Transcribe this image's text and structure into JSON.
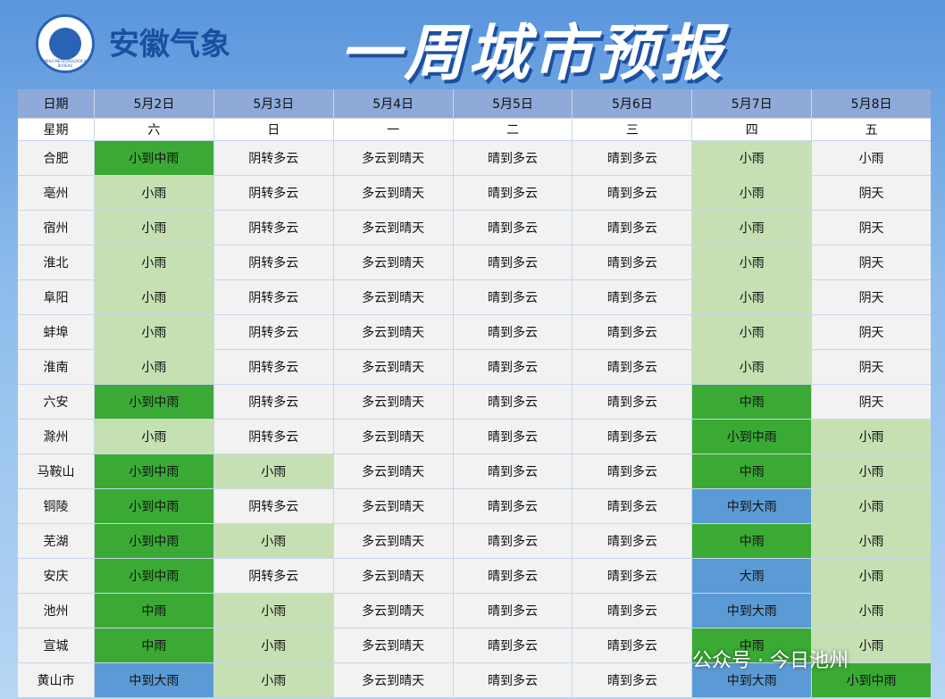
{
  "header": {
    "brand": "安徽气象",
    "title": "一周城市预报",
    "logo_text": "ANHUI METEOROLOGICAL BUREAU"
  },
  "table": {
    "header": [
      "日期",
      "5月2日",
      "5月3日",
      "5月4日",
      "5月5日",
      "5月6日",
      "5月7日",
      "5月8日"
    ],
    "weekdays": [
      "星期",
      "六",
      "日",
      "一",
      "二",
      "三",
      "四",
      "五"
    ],
    "rows": [
      [
        "合肥",
        "小到中雨",
        "阴转多云",
        "多云到晴天",
        "晴到多云",
        "晴到多云",
        "小雨",
        "小雨"
      ],
      [
        "亳州",
        "小雨",
        "阴转多云",
        "多云到晴天",
        "晴到多云",
        "晴到多云",
        "小雨",
        "阴天"
      ],
      [
        "宿州",
        "小雨",
        "阴转多云",
        "多云到晴天",
        "晴到多云",
        "晴到多云",
        "小雨",
        "阴天"
      ],
      [
        "淮北",
        "小雨",
        "阴转多云",
        "多云到晴天",
        "晴到多云",
        "晴到多云",
        "小雨",
        "阴天"
      ],
      [
        "阜阳",
        "小雨",
        "阴转多云",
        "多云到晴天",
        "晴到多云",
        "晴到多云",
        "小雨",
        "阴天"
      ],
      [
        "蚌埠",
        "小雨",
        "阴转多云",
        "多云到晴天",
        "晴到多云",
        "晴到多云",
        "小雨",
        "阴天"
      ],
      [
        "淮南",
        "小雨",
        "阴转多云",
        "多云到晴天",
        "晴到多云",
        "晴到多云",
        "小雨",
        "阴天"
      ],
      [
        "六安",
        "小到中雨",
        "阴转多云",
        "多云到晴天",
        "晴到多云",
        "晴到多云",
        "中雨",
        "阴天"
      ],
      [
        "滁州",
        "小雨",
        "阴转多云",
        "多云到晴天",
        "晴到多云",
        "晴到多云",
        "小到中雨",
        "小雨"
      ],
      [
        "马鞍山",
        "小到中雨",
        "小雨",
        "多云到晴天",
        "晴到多云",
        "晴到多云",
        "中雨",
        "小雨"
      ],
      [
        "铜陵",
        "小到中雨",
        "阴转多云",
        "多云到晴天",
        "晴到多云",
        "晴到多云",
        "中到大雨",
        "小雨"
      ],
      [
        "芜湖",
        "小到中雨",
        "小雨",
        "多云到晴天",
        "晴到多云",
        "晴到多云",
        "中雨",
        "小雨"
      ],
      [
        "安庆",
        "小到中雨",
        "阴转多云",
        "多云到晴天",
        "晴到多云",
        "晴到多云",
        "大雨",
        "小雨"
      ],
      [
        "池州",
        "中雨",
        "小雨",
        "多云到晴天",
        "晴到多云",
        "晴到多云",
        "中到大雨",
        "小雨"
      ],
      [
        "宣城",
        "中雨",
        "小雨",
        "多云到晴天",
        "晴到多云",
        "晴到多云",
        "中雨",
        "小雨"
      ],
      [
        "黄山市",
        "中到大雨",
        "小雨",
        "多云到晴天",
        "晴到多云",
        "晴到多云",
        "中到大雨",
        "小到中雨"
      ]
    ],
    "colors": [
      [
        "#f2f2f2",
        "#3aaa35",
        "#f2f2f2",
        "#f2f2f2",
        "#f2f2f2",
        "#f2f2f2",
        "#c6e0b4",
        "#f2f2f2"
      ],
      [
        "#f2f2f2",
        "#c6e0b4",
        "#f2f2f2",
        "#f2f2f2",
        "#f2f2f2",
        "#f2f2f2",
        "#c6e0b4",
        "#f2f2f2"
      ],
      [
        "#f2f2f2",
        "#c6e0b4",
        "#f2f2f2",
        "#f2f2f2",
        "#f2f2f2",
        "#f2f2f2",
        "#c6e0b4",
        "#f2f2f2"
      ],
      [
        "#f2f2f2",
        "#c6e0b4",
        "#f2f2f2",
        "#f2f2f2",
        "#f2f2f2",
        "#f2f2f2",
        "#c6e0b4",
        "#f2f2f2"
      ],
      [
        "#f2f2f2",
        "#c6e0b4",
        "#f2f2f2",
        "#f2f2f2",
        "#f2f2f2",
        "#f2f2f2",
        "#c6e0b4",
        "#f2f2f2"
      ],
      [
        "#f2f2f2",
        "#c6e0b4",
        "#f2f2f2",
        "#f2f2f2",
        "#f2f2f2",
        "#f2f2f2",
        "#c6e0b4",
        "#f2f2f2"
      ],
      [
        "#f2f2f2",
        "#c6e0b4",
        "#f2f2f2",
        "#f2f2f2",
        "#f2f2f2",
        "#f2f2f2",
        "#c6e0b4",
        "#f2f2f2"
      ],
      [
        "#f2f2f2",
        "#3aaa35",
        "#f2f2f2",
        "#f2f2f2",
        "#f2f2f2",
        "#f2f2f2",
        "#3aaa35",
        "#f2f2f2"
      ],
      [
        "#f2f2f2",
        "#c6e0b4",
        "#f2f2f2",
        "#f2f2f2",
        "#f2f2f2",
        "#f2f2f2",
        "#3aaa35",
        "#c6e0b4"
      ],
      [
        "#f2f2f2",
        "#3aaa35",
        "#c6e0b4",
        "#f2f2f2",
        "#f2f2f2",
        "#f2f2f2",
        "#3aaa35",
        "#c6e0b4"
      ],
      [
        "#f2f2f2",
        "#3aaa35",
        "#f2f2f2",
        "#f2f2f2",
        "#f2f2f2",
        "#f2f2f2",
        "#5b9bd5",
        "#c6e0b4"
      ],
      [
        "#f2f2f2",
        "#3aaa35",
        "#c6e0b4",
        "#f2f2f2",
        "#f2f2f2",
        "#f2f2f2",
        "#3aaa35",
        "#c6e0b4"
      ],
      [
        "#f2f2f2",
        "#3aaa35",
        "#f2f2f2",
        "#f2f2f2",
        "#f2f2f2",
        "#f2f2f2",
        "#5b9bd5",
        "#c6e0b4"
      ],
      [
        "#f2f2f2",
        "#3aaa35",
        "#c6e0b4",
        "#f2f2f2",
        "#f2f2f2",
        "#f2f2f2",
        "#5b9bd5",
        "#c6e0b4"
      ],
      [
        "#f2f2f2",
        "#3aaa35",
        "#c6e0b4",
        "#f2f2f2",
        "#f2f2f2",
        "#f2f2f2",
        "#3aaa35",
        "#c6e0b4"
      ],
      [
        "#f2f2f2",
        "#5b9bd5",
        "#c6e0b4",
        "#f2f2f2",
        "#f2f2f2",
        "#f2f2f2",
        "#5b9bd5",
        "#3aaa35"
      ]
    ]
  },
  "watermark": "公众号 · 今日池州"
}
